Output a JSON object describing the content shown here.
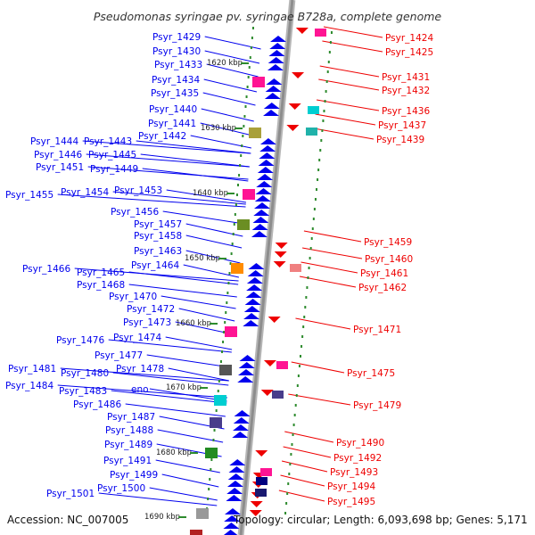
{
  "title": "Pseudomonas syringae pv. syringae B728a, complete genome",
  "footer": {
    "accession": "Accession: NC_007005",
    "summary": "Topology: circular; Length: 6,093,698 bp; Genes: 5,171"
  },
  "colors": {
    "forward": "#0000ee",
    "reverse": "#ee0000",
    "backbone": "#9a9a9a",
    "ticks": "#2e8b2e"
  },
  "kbp_markers": [
    "1620 kbp",
    "1630 kbp",
    "1640 kbp",
    "1650 kbp",
    "1660 kbp",
    "1670 kbp",
    "1680 kbp",
    "1690 kbp"
  ],
  "left_labels": [
    "Psyr_1429",
    "Psyr_1430",
    "Psyr_1433",
    "Psyr_1434",
    "Psyr_1435",
    "Psyr_1440",
    "Psyr_1441",
    "Psyr_1442",
    "Psyr_1444",
    "Psyr_1443",
    "Psyr_1446",
    "Psyr_1445",
    "Psyr_1451",
    "Psyr_1449",
    "Psyr_1455",
    "Psyr_1454",
    "Psyr_1453",
    "Psyr_1456",
    "Psyr_1457",
    "Psyr_1458",
    "Psyr_1463",
    "Psyr_1464",
    "Psyr_1466",
    "Psyr_1465",
    "Psyr_1468",
    "Psyr_1470",
    "Psyr_1472",
    "Psyr_1473",
    "Psyr_1474",
    "Psyr_1476",
    "Psyr_1477",
    "Psyr_1478",
    "Psyr_1481",
    "Psyr_1480",
    "Psyr_1484",
    "Psyr_1483",
    "eno",
    "Psyr_1486",
    "Psyr_1487",
    "Psyr_1488",
    "Psyr_1489",
    "Psyr_1491",
    "Psyr_1499",
    "Psyr_1500",
    "Psyr_1501"
  ],
  "right_labels": [
    "Psyr_1424",
    "Psyr_1425",
    "Psyr_1431",
    "Psyr_1432",
    "Psyr_1436",
    "Psyr_1437",
    "Psyr_1439",
    "Psyr_1459",
    "Psyr_1460",
    "Psyr_1461",
    "Psyr_1462",
    "Psyr_1471",
    "Psyr_1475",
    "Psyr_1479",
    "Psyr_1490",
    "Psyr_1492",
    "Psyr_1493",
    "Psyr_1494",
    "Psyr_1495"
  ]
}
